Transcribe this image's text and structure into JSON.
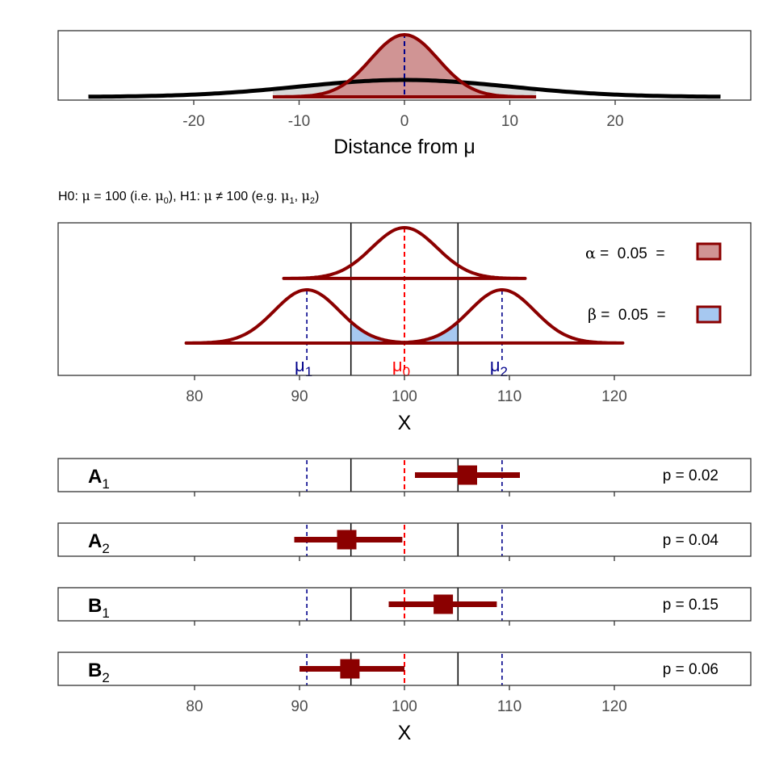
{
  "colors": {
    "curve": "#8b0000",
    "wide_curve": "#000000",
    "alpha_fill": "#d09494",
    "beta_fill": "#a6c8f0",
    "mu0_line": "#ff0000",
    "mu_alt_line": "#00008b",
    "gray_fill": "#d9d9d9"
  },
  "chart_data": [
    {
      "type": "area",
      "panel": "top",
      "xlabel": "Distance from μ",
      "xlim": [
        -30,
        30
      ],
      "xticks": [
        "-20",
        "-10",
        "0",
        "10",
        "20"
      ],
      "xtick_values": [
        -20,
        -10,
        0,
        10,
        20
      ],
      "series": [
        {
          "curve": "wide",
          "mean": 0,
          "sd": 10,
          "range": [
            -30,
            30
          ],
          "color": "#000000"
        },
        {
          "curve": "narrow",
          "mean": 0,
          "sd": 3.2,
          "range": [
            -12.5,
            12.5
          ],
          "color": "#8b0000"
        }
      ],
      "reference_line": 0
    },
    {
      "type": "area",
      "panel": "hypothesis",
      "subtitle": {
        "h0_prefix": "H0: ",
        "mu": "μ",
        "eq": " = 100 (i.e. ",
        "sub0": "0",
        "mid": "),  H1: ",
        "neq": " ≠ 100 (e.g. ",
        "sub1": "1",
        "comma": ", ",
        "sub2": "2",
        "close": ")"
      },
      "xlabel": "X",
      "xlim": [
        67,
        133
      ],
      "xticks": [
        "80",
        "90",
        "100",
        "110",
        "120"
      ],
      "xtick_values": [
        80,
        90,
        100,
        110,
        120
      ],
      "critical_values": [
        94.9,
        105.1
      ],
      "distributions": [
        {
          "name": "μ0",
          "mean": 100,
          "sd": 3.1,
          "range": [
            88.5,
            111.5
          ]
        },
        {
          "name": "μ1",
          "mean": 90.7,
          "sd": 3.1,
          "range": [
            79.2,
            100
          ]
        },
        {
          "name": "μ2",
          "mean": 109.3,
          "sd": 3.1,
          "range": [
            100,
            120.8
          ]
        }
      ],
      "mu_labels": [
        {
          "base": "μ",
          "sub": "1",
          "x": 90.7
        },
        {
          "base": "μ",
          "sub": "0",
          "x": 100
        },
        {
          "base": "μ",
          "sub": "2",
          "x": 109.3
        }
      ],
      "legend": {
        "alpha": {
          "symbol": "α",
          "text": " =  0.05  = "
        },
        "beta": {
          "symbol": "β",
          "text": " =  0.05  = "
        },
        "position": "right"
      }
    },
    {
      "type": "scatter",
      "panel": "confidence-intervals",
      "xlabel": "X",
      "xlim": [
        67,
        133
      ],
      "xticks": [
        "80",
        "90",
        "100",
        "110",
        "120"
      ],
      "xtick_values": [
        80,
        90,
        100,
        110,
        120
      ],
      "rows": [
        {
          "label": "A",
          "sub": "1",
          "estimate": 106.0,
          "ci": [
            101.0,
            111.0
          ],
          "p": "p = 0.02"
        },
        {
          "label": "A",
          "sub": "2",
          "estimate": 94.5,
          "ci": [
            89.5,
            99.8
          ],
          "p": "p = 0.04"
        },
        {
          "label": "B",
          "sub": "1",
          "estimate": 103.7,
          "ci": [
            98.5,
            108.8
          ],
          "p": "p = 0.15"
        },
        {
          "label": "B",
          "sub": "2",
          "estimate": 94.8,
          "ci": [
            90.0,
            100.0
          ],
          "p": "p = 0.06"
        }
      ]
    }
  ]
}
